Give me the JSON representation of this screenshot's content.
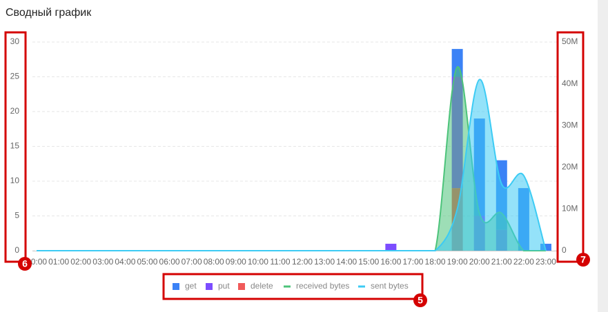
{
  "chart_data": {
    "type": "bar",
    "title": "Сводный график",
    "stacked": true,
    "grid": true,
    "categories": [
      "00:00",
      "01:00",
      "02:00",
      "03:00",
      "04:00",
      "05:00",
      "06:00",
      "07:00",
      "08:00",
      "09:00",
      "10:00",
      "11:00",
      "12:00",
      "13:00",
      "14:00",
      "15:00",
      "16:00",
      "17:00",
      "18:00",
      "19:00",
      "20:00",
      "21:00",
      "22:00",
      "23:00"
    ],
    "ylim": [
      0,
      30
    ],
    "yticks": [
      0,
      5,
      10,
      15,
      20,
      25,
      30
    ],
    "y2lim": [
      0,
      50000000
    ],
    "y2ticks": [
      0,
      {
        "value": 10000000,
        "label": "10M"
      },
      {
        "value": 20000000,
        "label": "20M"
      },
      {
        "value": 30000000,
        "label": "30M"
      },
      {
        "value": 40000000,
        "label": "40M"
      },
      {
        "value": 50000000,
        "label": "50M"
      }
    ],
    "series": [
      {
        "name": "get",
        "type": "bar",
        "color": "#3b82f6",
        "values": [
          0,
          0,
          0,
          0,
          0,
          0,
          0,
          0,
          0,
          0,
          0,
          0,
          0,
          0,
          0,
          0,
          0,
          0,
          0,
          4,
          14,
          10,
          9,
          1
        ]
      },
      {
        "name": "put",
        "type": "bar",
        "color": "#7c4dff",
        "values": [
          0,
          0,
          0,
          0,
          0,
          0,
          0,
          0,
          0,
          0,
          0,
          0,
          0,
          0,
          0,
          0,
          1,
          0,
          0,
          16,
          5,
          3,
          0,
          0
        ]
      },
      {
        "name": "delete",
        "type": "bar",
        "color": "#f05a5a",
        "values": [
          0,
          0,
          0,
          0,
          0,
          0,
          0,
          0,
          0,
          0,
          0,
          0,
          0,
          0,
          0,
          0,
          0,
          0,
          0,
          9,
          0,
          0,
          0,
          0
        ]
      },
      {
        "name": "received bytes",
        "type": "area",
        "axis": "y2",
        "color": "#4cc37a",
        "values": [
          0,
          0,
          0,
          0,
          0,
          0,
          0,
          0,
          0,
          0,
          0,
          0,
          0,
          0,
          0,
          0,
          0,
          0,
          0,
          44000000,
          9000000,
          9000000,
          0,
          0
        ]
      },
      {
        "name": "sent bytes",
        "type": "area",
        "axis": "y2",
        "color": "#3ccbf4",
        "values": [
          0,
          0,
          0,
          0,
          0,
          0,
          0,
          0,
          0,
          0,
          0,
          0,
          0,
          0,
          0,
          0,
          0,
          0,
          0,
          10000000,
          41000000,
          16000000,
          18000000,
          0
        ]
      }
    ],
    "annotations": [
      "5",
      "6",
      "7"
    ]
  }
}
